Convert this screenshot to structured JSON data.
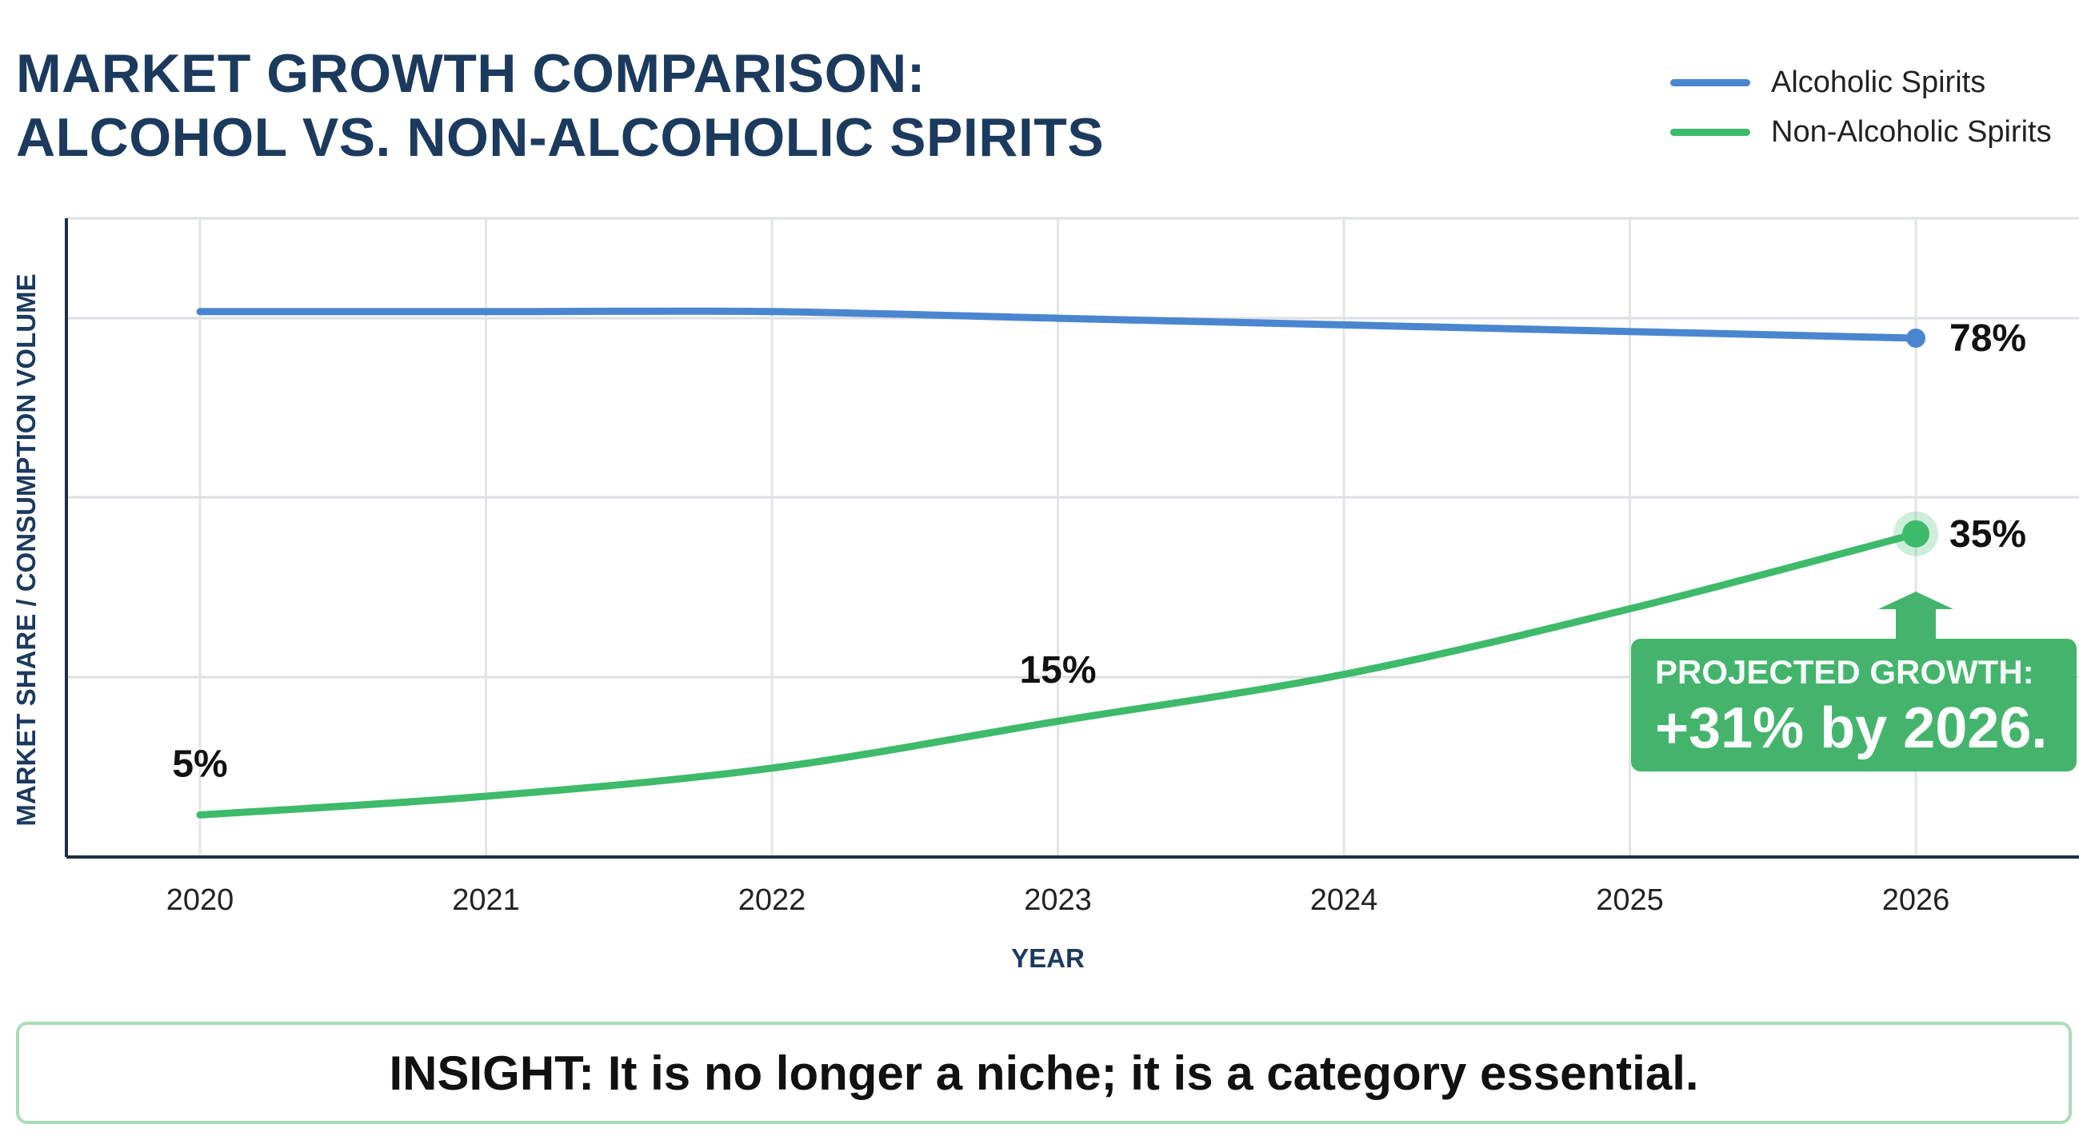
{
  "chart_data": {
    "type": "line",
    "title": "MARKET GROWTH COMPARISON: ALCOHOL VS. NON-ALCOHOLIC SPIRITS",
    "title_lines": [
      "MARKET GROWTH COMPARISON:",
      "ALCOHOL VS. NON-ALCOHOLIC SPIRITS"
    ],
    "xlabel": "YEAR",
    "ylabel": "MARKET SHARE / CONSUMPTION VOLUME",
    "x": [
      "2020",
      "2021",
      "2022",
      "2023",
      "2024",
      "2025",
      "2026"
    ],
    "series": [
      {
        "name": "Alcoholic Spirits",
        "color": "#4a86d0",
        "values": [
          80,
          80,
          80,
          79.5,
          79,
          78.5,
          78
        ]
      },
      {
        "name": "Non-Alcoholic Spirits",
        "color": "#3dba6a",
        "values": [
          5,
          7,
          10,
          15,
          20,
          27,
          35
        ]
      }
    ],
    "data_labels": [
      {
        "series": 0,
        "x": "2026",
        "text": "78%"
      },
      {
        "series": 1,
        "x": "2026",
        "text": "35%"
      },
      {
        "series": 1,
        "x": "2023",
        "text": "15%"
      },
      {
        "series": 1,
        "x": "2020",
        "text": "5%"
      }
    ],
    "grid": true,
    "legend_position": "top-right",
    "annotation": {
      "line1": "PROJECTED GROWTH:",
      "line2": "+31% by 2026."
    }
  },
  "insight": "INSIGHT: It is no longer a niche; it is a category essential."
}
